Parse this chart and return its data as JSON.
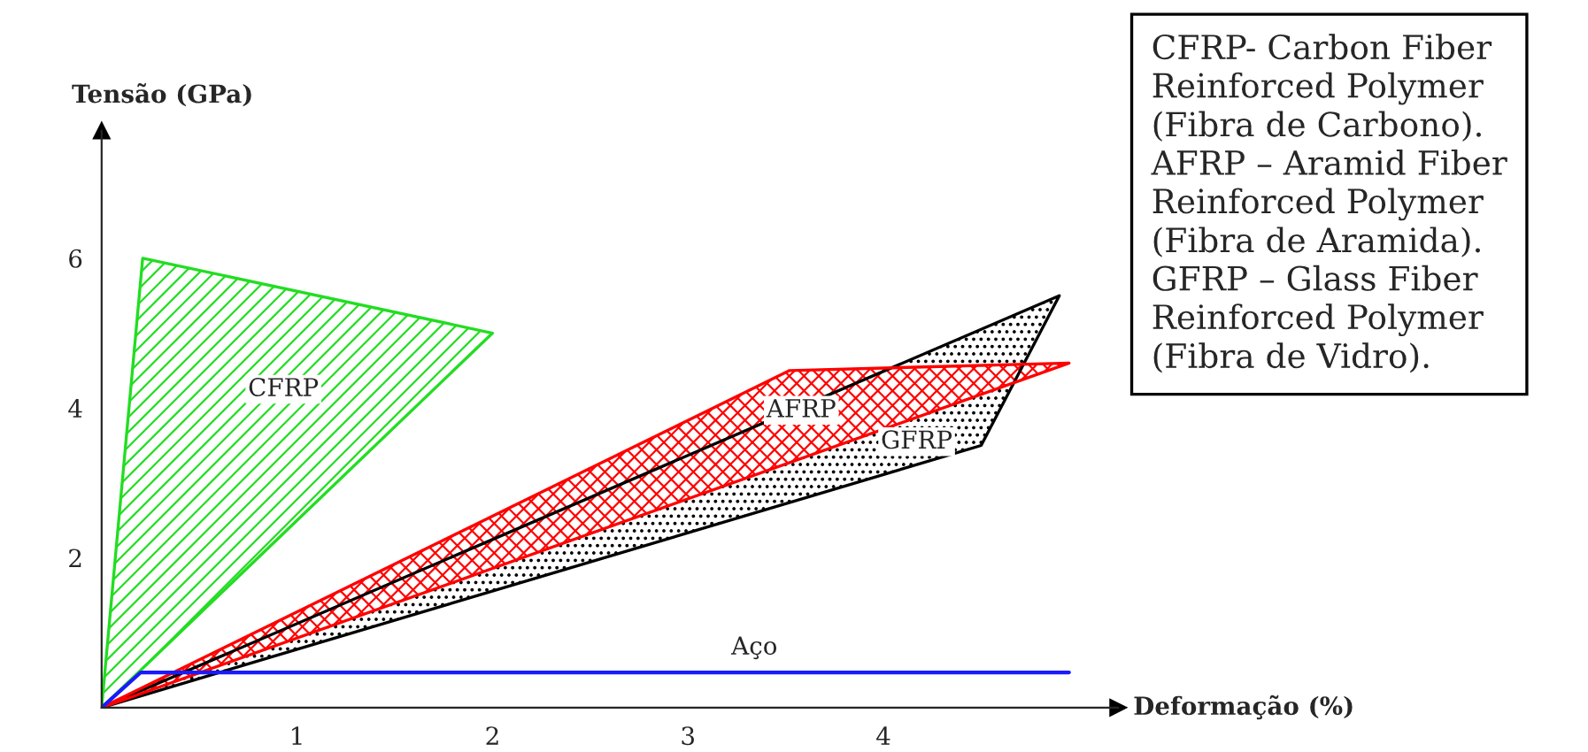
{
  "chart_data": {
    "type": "area",
    "xlabel": "Deformação (%)",
    "ylabel": "Tensão (GPa)",
    "xlim": [
      0,
      5.2
    ],
    "ylim": [
      0,
      7.7
    ],
    "xticks": [
      1,
      2,
      3,
      4
    ],
    "yticks": [
      2,
      4,
      6
    ],
    "grid": false,
    "legend": false,
    "series": [
      {
        "color": "#000000",
        "x": [
          0,
          4.06,
          4.9,
          4.5,
          0
        ],
        "values": [
          0,
          null,
          5.5,
          3.5,
          0
        ]
      },
      {
        "color": "#ff0000",
        "x": [
          0,
          3.52,
          4.95,
          0
        ],
        "values": [
          0,
          4.5,
          4.6,
          0
        ]
      },
      {
        "color": "#22dd22",
        "x": [
          0,
          0.21,
          2.0,
          0
        ],
        "values": [
          0,
          6.0,
          5.0,
          0
        ]
      },
      {
        "type": "line",
        "color": "#1a1aff",
        "x": [
          0,
          0.2,
          4.95
        ],
        "values": [
          0,
          0.47,
          0.47
        ]
      }
    ],
    "annotations": [
      {
        "text": "CFRP",
        "x": 0.93,
        "y": 4.25
      },
      {
        "text": "AFRP",
        "x": 3.58,
        "y": 3.97
      },
      {
        "text": "GFRP",
        "x": 4.17,
        "y": 3.55
      },
      {
        "text": "Aço",
        "x": 3.34,
        "y": 0.8
      },
      "CFRP- Carbon Fiber Reinforced Polymer (Fibra de Carbono).",
      "AFRP – Aramid Fiber Reinforced Polymer (Fibra de Aramida).",
      "GFRP – Glass Fiber Reinforced Polymer (Fibra de Vidro)."
    ]
  }
}
